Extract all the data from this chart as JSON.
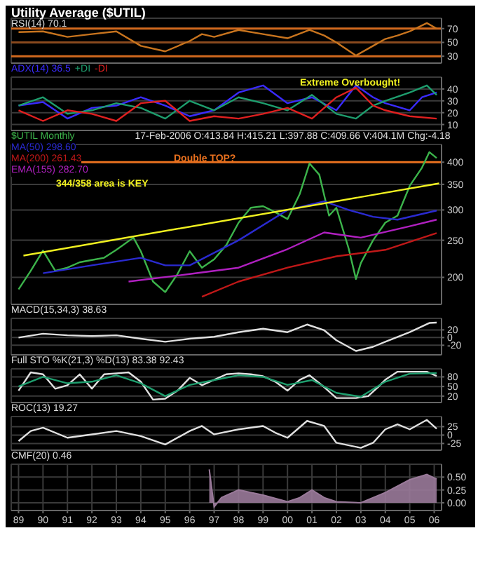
{
  "chart_data": [
    {
      "type": "line",
      "title": "Utility Average ($UTIL)",
      "subtitle": "RSI(14) 70.1",
      "xlim": [
        1988.7,
        2006.3
      ],
      "xticks": [
        {
          "value": 1989,
          "label": null
        },
        {
          "value": 1990,
          "label": null
        },
        {
          "value": 1991,
          "label": null
        },
        {
          "value": 1992,
          "label": null
        },
        {
          "value": 1993,
          "label": null
        },
        {
          "value": 1994,
          "label": null
        },
        {
          "value": 1995,
          "label": null
        },
        {
          "value": 1996,
          "label": null
        },
        {
          "value": 1997,
          "label": null
        },
        {
          "value": 1998,
          "label": null
        },
        {
          "value": 1999,
          "label": null
        },
        {
          "value": 2000,
          "label": null
        },
        {
          "value": 2001,
          "label": null
        },
        {
          "value": 2002,
          "label": null
        },
        {
          "value": 2003,
          "label": null
        },
        {
          "value": 2004,
          "label": null
        },
        {
          "value": 2005,
          "label": null
        },
        {
          "value": 2006,
          "label": null
        }
      ],
      "ylim": [
        20,
        85
      ],
      "yticks": [
        30,
        50,
        70
      ],
      "grid": true,
      "tick_labels": "y",
      "ref_lines": [
        {
          "axis": "y",
          "value": 70,
          "color": "#d2691e"
        },
        {
          "axis": "y",
          "value": 50,
          "color": "#8a4a1e"
        },
        {
          "axis": "y",
          "value": 30,
          "color": "#d2691e"
        }
      ],
      "series": [
        {
          "color": "#c8741e",
          "x": [
            1989,
            1990,
            1991,
            1992,
            1993,
            1994,
            1995,
            1996,
            1996.5,
            1997,
            1998,
            1999,
            2000,
            2000.9,
            2001.5,
            2002,
            2002.8,
            2003.5,
            2004,
            2004.5,
            2005,
            2005.7,
            2006.1
          ],
          "values": [
            65,
            66,
            58,
            62,
            66,
            45,
            37,
            52,
            62,
            58,
            68,
            62,
            56,
            68,
            60,
            50,
            31,
            45,
            55,
            60,
            66,
            78,
            70
          ]
        }
      ]
    },
    {
      "type": "line",
      "legend": "top left",
      "xlim": [
        1988.7,
        2006.3
      ],
      "xticks": [
        {
          "value": 1989,
          "label": null
        },
        {
          "value": 1990,
          "label": null
        },
        {
          "value": 1991,
          "label": null
        },
        {
          "value": 1992,
          "label": null
        },
        {
          "value": 1993,
          "label": null
        },
        {
          "value": 1994,
          "label": null
        },
        {
          "value": 1995,
          "label": null
        },
        {
          "value": 1996,
          "label": null
        },
        {
          "value": 1997,
          "label": null
        },
        {
          "value": 1998,
          "label": null
        },
        {
          "value": 1999,
          "label": null
        },
        {
          "value": 2000,
          "label": null
        },
        {
          "value": 2001,
          "label": null
        },
        {
          "value": 2002,
          "label": null
        },
        {
          "value": 2003,
          "label": null
        },
        {
          "value": 2004,
          "label": null
        },
        {
          "value": 2005,
          "label": null
        },
        {
          "value": 2006,
          "label": null
        }
      ],
      "ylim": [
        5,
        50
      ],
      "yticks": [
        10,
        20,
        30,
        40
      ],
      "grid": true,
      "tick_labels": "y",
      "annotations": [
        "Extreme Overbought!"
      ],
      "series": [
        {
          "name": "ADX(14) 36.5",
          "color": "#3a2bff",
          "x": [
            1989,
            1990,
            1991,
            1992,
            1993,
            1994,
            1995,
            1996,
            1997,
            1998,
            1999,
            2000,
            2001,
            2002,
            2002.8,
            2003.5,
            2004,
            2005,
            2005.5,
            2006.1
          ],
          "values": [
            26,
            29,
            15,
            24,
            26,
            33,
            26,
            17,
            22,
            37,
            43,
            28,
            33,
            22,
            43,
            33,
            28,
            22,
            33,
            37
          ]
        },
        {
          "name": "+DI",
          "color": "#1e9e6e",
          "x": [
            1989,
            1990,
            1991,
            1992,
            1993,
            1994,
            1995,
            1996,
            1997,
            1998,
            1999,
            2000,
            2001,
            2002,
            2002.8,
            2003.5,
            2004,
            2005,
            2005.7,
            2006.1
          ],
          "values": [
            26,
            33,
            19,
            22,
            28,
            24,
            15,
            30,
            22,
            33,
            28,
            22,
            35,
            19,
            15,
            26,
            30,
            37,
            43,
            35
          ]
        },
        {
          "name": "-DI",
          "color": "#e02020",
          "x": [
            1989,
            1990,
            1991,
            1992,
            1993,
            1994,
            1995,
            1996,
            1997,
            1998,
            1999,
            2000,
            2001,
            2002,
            2002.8,
            2003.5,
            2004,
            2005,
            2006.1
          ],
          "values": [
            22,
            13,
            22,
            19,
            13,
            28,
            30,
            13,
            17,
            15,
            19,
            24,
            15,
            33,
            41,
            26,
            22,
            17,
            15
          ]
        }
      ]
    },
    {
      "type": "line",
      "subtitle": "17-Feb-2006 O:413.84 H:415.21 L:397.88 C:409.66 V:404.1M Chg:-4.18",
      "legend": "top left",
      "log": true,
      "xlim": [
        1988.7,
        2006.3
      ],
      "xticks": [
        {
          "value": 1989,
          "label": null
        },
        {
          "value": 1990,
          "label": null
        },
        {
          "value": 1991,
          "label": null
        },
        {
          "value": 1992,
          "label": null
        },
        {
          "value": 1993,
          "label": null
        },
        {
          "value": 1994,
          "label": null
        },
        {
          "value": 1995,
          "label": null
        },
        {
          "value": 1996,
          "label": null
        },
        {
          "value": 1997,
          "label": null
        },
        {
          "value": 1998,
          "label": null
        },
        {
          "value": 1999,
          "label": null
        },
        {
          "value": 2000,
          "label": null
        },
        {
          "value": 2001,
          "label": null
        },
        {
          "value": 2002,
          "label": null
        },
        {
          "value": 2003,
          "label": null
        },
        {
          "value": 2004,
          "label": null
        },
        {
          "value": 2005,
          "label": null
        },
        {
          "value": 2006,
          "label": null
        }
      ],
      "ylim": [
        170,
        445
      ],
      "yticks": [
        200,
        250,
        300,
        350,
        400
      ],
      "grid": true,
      "tick_labels": "y",
      "ref_lines": [
        {
          "axis": "y",
          "value": 400,
          "color": "#e8701e"
        }
      ],
      "annotations": [
        "Double TOP?",
        "344/358 area is KEY"
      ],
      "series": [
        {
          "name": "$UTIL Monthly",
          "color": "#3cb44b",
          "x": [
            1989,
            1989.5,
            1990,
            1990.5,
            1991,
            1991.5,
            1992,
            1992.5,
            1993,
            1993.7,
            1994,
            1994.5,
            1995,
            1995.5,
            1996,
            1996.5,
            1997,
            1997.5,
            1998,
            1998.5,
            1999,
            1999.5,
            2000,
            2000.5,
            2000.9,
            2001.3,
            2001.7,
            2002,
            2002.5,
            2002.8,
            2003,
            2003.5,
            2004,
            2004.5,
            2005,
            2005.5,
            2005.8,
            2006.1
          ],
          "values": [
            186,
            208,
            235,
            208,
            212,
            219,
            222,
            225,
            236,
            254,
            234,
            195,
            183,
            204,
            234,
            212,
            223,
            243,
            278,
            304,
            307,
            296,
            284,
            330,
            397,
            371,
            290,
            304,
            238,
            198,
            218,
            250,
            278,
            290,
            347,
            387,
            425,
            410
          ]
        },
        {
          "name": "MA(50) 298.60",
          "color": "#2a2ad0",
          "x": [
            1990,
            1992,
            1994,
            1995,
            1996,
            1998,
            2000,
            2001.5,
            2002.5,
            2003.5,
            2004.5,
            2006.1
          ],
          "values": [
            205,
            215,
            225,
            215,
            215,
            250,
            300,
            316,
            300,
            288,
            283,
            299
          ]
        },
        {
          "name": "MA(200) 261.43",
          "color": "#c01818",
          "x": [
            1996.5,
            1998,
            2000,
            2002,
            2004,
            2006.1
          ],
          "values": [
            178,
            195,
            212,
            227,
            236,
            261
          ]
        },
        {
          "name": "EMA(155) 282.70",
          "color": "#b020c0",
          "x": [
            1993.5,
            1996,
            1998,
            2000,
            2001.5,
            2003,
            2005,
            2006.1
          ],
          "values": [
            195,
            204,
            212,
            237,
            262,
            254,
            272,
            283
          ]
        },
        {
          "color": "#f0f020",
          "x": [
            1989.2,
            2006.2
          ],
          "values": [
            228,
            352
          ]
        }
      ]
    },
    {
      "type": "line",
      "subtitle": "MACD(15,34,3) 38.63",
      "xlim": [
        1988.7,
        2006.3
      ],
      "xticks": [
        {
          "value": 1989,
          "label": null
        },
        {
          "value": 1990,
          "label": null
        },
        {
          "value": 1991,
          "label": null
        },
        {
          "value": 1992,
          "label": null
        },
        {
          "value": 1993,
          "label": null
        },
        {
          "value": 1994,
          "label": null
        },
        {
          "value": 1995,
          "label": null
        },
        {
          "value": 1996,
          "label": null
        },
        {
          "value": 1997,
          "label": null
        },
        {
          "value": 1998,
          "label": null
        },
        {
          "value": 1999,
          "label": null
        },
        {
          "value": 2000,
          "label": null
        },
        {
          "value": 2001,
          "label": null
        },
        {
          "value": 2002,
          "label": null
        },
        {
          "value": 2003,
          "label": null
        },
        {
          "value": 2004,
          "label": null
        },
        {
          "value": 2005,
          "label": null
        },
        {
          "value": 2006,
          "label": null
        }
      ],
      "ylim": [
        -45,
        50
      ],
      "yticks": [
        -20,
        0,
        20
      ],
      "grid": true,
      "tick_labels": "y",
      "series": [
        {
          "color": "#e0e0e0",
          "x": [
            1989,
            1990,
            1991,
            1992,
            1993,
            1994,
            1995,
            1996,
            1997,
            1998,
            1999,
            2000,
            2000.8,
            2001.5,
            2002,
            2002.8,
            2003.5,
            2004,
            2005,
            2005.8,
            2006.1
          ],
          "values": [
            0,
            10,
            6,
            4,
            6,
            -3,
            -11,
            -3,
            2,
            14,
            23,
            14,
            34,
            19,
            -7,
            -35,
            -24,
            -11,
            14,
            38,
            39
          ]
        }
      ]
    },
    {
      "type": "line",
      "subtitle": "Full STO %K(21,3) %D(13) 83.38 92.43",
      "xlim": [
        1988.7,
        2006.3
      ],
      "xticks": [
        {
          "value": 1989,
          "label": null
        },
        {
          "value": 1990,
          "label": null
        },
        {
          "value": 1991,
          "label": null
        },
        {
          "value": 1992,
          "label": null
        },
        {
          "value": 1993,
          "label": null
        },
        {
          "value": 1994,
          "label": null
        },
        {
          "value": 1995,
          "label": null
        },
        {
          "value": 1996,
          "label": null
        },
        {
          "value": 1997,
          "label": null
        },
        {
          "value": 1998,
          "label": null
        },
        {
          "value": 1999,
          "label": null
        },
        {
          "value": 2000,
          "label": null
        },
        {
          "value": 2001,
          "label": null
        },
        {
          "value": 2002,
          "label": null
        },
        {
          "value": 2003,
          "label": null
        },
        {
          "value": 2004,
          "label": null
        },
        {
          "value": 2005,
          "label": null
        },
        {
          "value": 2006,
          "label": null
        }
      ],
      "ylim": [
        0,
        105
      ],
      "yticks": [
        20,
        50,
        80
      ],
      "grid": true,
      "tick_labels": "y",
      "series": [
        {
          "color": "#e0e0e0",
          "x": [
            1989,
            1989.5,
            1990,
            1990.5,
            1991,
            1991.5,
            1992,
            1992.5,
            1993,
            1993.5,
            1994,
            1994.5,
            1995,
            1995.5,
            1996,
            1996.5,
            1997,
            1997.5,
            1998,
            1998.5,
            1999,
            1999.5,
            2000,
            2000.5,
            2000.9,
            2001.5,
            2002,
            2002.8,
            2003.3,
            2003.7,
            2004,
            2004.5,
            2005,
            2005.7,
            2006.1
          ],
          "values": [
            37,
            94,
            88,
            43,
            54,
            88,
            43,
            88,
            91,
            94,
            65,
            9,
            12,
            37,
            77,
            54,
            71,
            88,
            91,
            88,
            82,
            65,
            37,
            71,
            85,
            48,
            14,
            14,
            20,
            48,
            71,
            96,
            96,
            96,
            83
          ]
        },
        {
          "color": "#1e9e6e",
          "x": [
            1989,
            1990,
            1991,
            1992,
            1993,
            1994,
            1995,
            1996,
            1997,
            1998,
            1999,
            2000,
            2001,
            2002,
            2003,
            2004,
            2005,
            2006.1
          ],
          "values": [
            50,
            80,
            60,
            65,
            85,
            60,
            20,
            55,
            70,
            85,
            80,
            55,
            70,
            30,
            18,
            65,
            90,
            92
          ]
        }
      ]
    },
    {
      "type": "line",
      "subtitle": "ROC(13) 19.27",
      "xlim": [
        1988.7,
        2006.3
      ],
      "xticks": [
        {
          "value": 1989,
          "label": null
        },
        {
          "value": 1990,
          "label": null
        },
        {
          "value": 1991,
          "label": null
        },
        {
          "value": 1992,
          "label": null
        },
        {
          "value": 1993,
          "label": null
        },
        {
          "value": 1994,
          "label": null
        },
        {
          "value": 1995,
          "label": null
        },
        {
          "value": 1996,
          "label": null
        },
        {
          "value": 1997,
          "label": null
        },
        {
          "value": 1998,
          "label": null
        },
        {
          "value": 1999,
          "label": null
        },
        {
          "value": 2000,
          "label": null
        },
        {
          "value": 2001,
          "label": null
        },
        {
          "value": 2002,
          "label": null
        },
        {
          "value": 2003,
          "label": null
        },
        {
          "value": 2004,
          "label": null
        },
        {
          "value": 2005,
          "label": null
        },
        {
          "value": 2006,
          "label": null
        }
      ],
      "ylim": [
        -45,
        55
      ],
      "yticks": [
        -25,
        0,
        25
      ],
      "grid": true,
      "tick_labels": "y",
      "series": [
        {
          "color": "#e0e0e0",
          "x": [
            1989,
            1989.5,
            1990,
            1991,
            1992,
            1993,
            1994,
            1995,
            1996,
            1996.5,
            1997,
            1998,
            1999,
            1999.5,
            2000,
            2000.8,
            2001.5,
            2002,
            2003,
            2003.5,
            2004,
            2004.5,
            2005,
            2005.7,
            2006.1
          ],
          "values": [
            -18,
            12,
            22,
            -8,
            2,
            12,
            -3,
            -28,
            12,
            27,
            2,
            17,
            27,
            7,
            -8,
            42,
            27,
            -23,
            -38,
            -23,
            17,
            32,
            17,
            45,
            19
          ]
        }
      ]
    },
    {
      "type": "area",
      "subtitle": "CMF(20) 0.46",
      "xlim": [
        1988.7,
        2006.3
      ],
      "xticks": [
        {
          "value": 1989,
          "label": "89"
        },
        {
          "value": 1990,
          "label": "90"
        },
        {
          "value": 1991,
          "label": "91"
        },
        {
          "value": 1992,
          "label": "92"
        },
        {
          "value": 1993,
          "label": "93"
        },
        {
          "value": 1994,
          "label": "94"
        },
        {
          "value": 1995,
          "label": "95"
        },
        {
          "value": 1996,
          "label": "96"
        },
        {
          "value": 1997,
          "label": "97"
        },
        {
          "value": 1998,
          "label": "98"
        },
        {
          "value": 1999,
          "label": "99"
        },
        {
          "value": 2000,
          "label": "00"
        },
        {
          "value": 2001,
          "label": "01"
        },
        {
          "value": 2002,
          "label": "02"
        },
        {
          "value": 2003,
          "label": "03"
        },
        {
          "value": 2004,
          "label": "04"
        },
        {
          "value": 2005,
          "label": "05"
        },
        {
          "value": 2006,
          "label": "06"
        }
      ],
      "ylim": [
        -0.15,
        0.75
      ],
      "yticks": [
        {
          "value": 0,
          "label": "0.00"
        },
        {
          "value": 0.25,
          "label": "0.25"
        },
        {
          "value": 0.5,
          "label": "0.50"
        }
      ],
      "grid": true,
      "series": [
        {
          "color": "#9a7a9a",
          "x": [
            1996.8,
            1997,
            1997.3,
            1998,
            1999,
            2000,
            2000.5,
            2001,
            2001.5,
            2002,
            2003,
            2003.5,
            2004,
            2005,
            2005.7,
            2006.1
          ],
          "values": [
            0.65,
            -0.08,
            0.1,
            0.25,
            0.15,
            0.02,
            0.1,
            0.25,
            0.1,
            0.02,
            0,
            0.1,
            0.2,
            0.45,
            0.55,
            0.46
          ]
        }
      ]
    }
  ]
}
